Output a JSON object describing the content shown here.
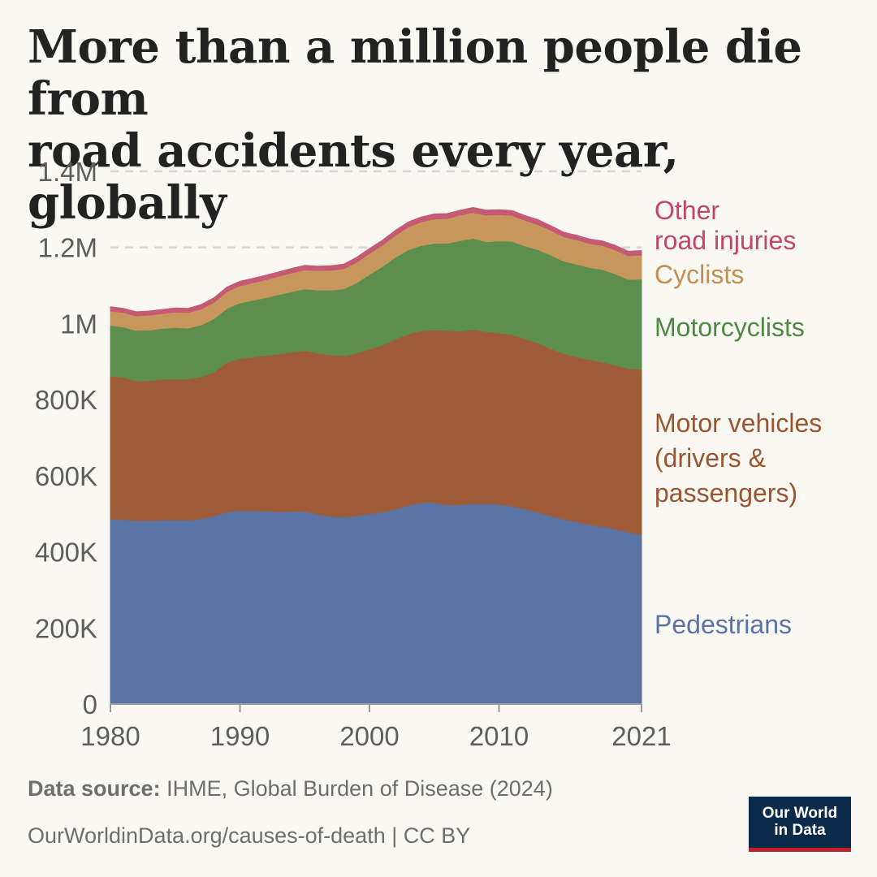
{
  "title_lines": [
    "More than a million people die from",
    "road accidents every year, globally"
  ],
  "footer": {
    "source_label": "Data source:",
    "source_text": "IHME, Global Burden of Disease (2024)",
    "url_text": "OurWorldinData.org/causes-of-death | CC BY"
  },
  "logo": {
    "line1": "Our World",
    "line2": "in Data",
    "bg_color": "#0b2a4a",
    "accent_color": "#c4202f"
  },
  "chart_data": {
    "type": "area",
    "stacked": true,
    "title": "More than a million people die from road accidents every year, globally",
    "xlabel": "",
    "ylabel": "",
    "xlim": [
      1980,
      2021
    ],
    "ylim": [
      0,
      1400000
    ],
    "x_ticks": [
      1980,
      1990,
      2000,
      2010,
      2021
    ],
    "y_ticks": [
      0,
      200000,
      400000,
      600000,
      800000,
      1000000,
      1200000,
      1400000
    ],
    "y_tick_labels": [
      "0",
      "200K",
      "400K",
      "600K",
      "800K",
      "1M",
      "1.2M",
      "1.4M"
    ],
    "grid": "horizontal dashed",
    "legend_placement": "right (inline labels)",
    "x": [
      1980,
      1981,
      1982,
      1983,
      1984,
      1985,
      1986,
      1987,
      1988,
      1989,
      1990,
      1991,
      1992,
      1993,
      1994,
      1995,
      1996,
      1997,
      1998,
      1999,
      2000,
      2001,
      2002,
      2003,
      2004,
      2005,
      2006,
      2007,
      2008,
      2009,
      2010,
      2011,
      2012,
      2013,
      2014,
      2015,
      2016,
      2017,
      2018,
      2019,
      2020,
      2021
    ],
    "series": [
      {
        "name": "Pedestrians",
        "label_lines": [
          "Pedestrians"
        ],
        "color": "#5a74a6",
        "values": [
          487000,
          485000,
          482000,
          482000,
          484000,
          484000,
          483000,
          487000,
          495000,
          505000,
          508000,
          508000,
          507000,
          506000,
          506000,
          507000,
          499000,
          493000,
          492000,
          495000,
          500000,
          505000,
          512000,
          522000,
          530000,
          530000,
          523000,
          524000,
          527000,
          526000,
          525000,
          520000,
          513000,
          504000,
          495000,
          486000,
          479000,
          472000,
          466000,
          460000,
          452000,
          445000
        ]
      },
      {
        "name": "Motor vehicles (drivers & passengers)",
        "label_lines": [
          "Motor vehicles",
          "(drivers &",
          "passengers)"
        ],
        "color": "#a05c37",
        "values": [
          375000,
          374000,
          367000,
          368000,
          370000,
          370000,
          371000,
          373000,
          378000,
          393000,
          400000,
          404000,
          409000,
          414000,
          419000,
          422000,
          423000,
          425000,
          423000,
          427000,
          433000,
          438000,
          447000,
          451000,
          451000,
          453000,
          459000,
          456000,
          457000,
          453000,
          450000,
          451000,
          447000,
          445000,
          439000,
          435000,
          433000,
          433000,
          433000,
          430000,
          430000,
          435000
        ]
      },
      {
        "name": "Motorcyclists",
        "label_lines": [
          "Motorcyclists"
        ],
        "color": "#5c8e4e",
        "values": [
          133000,
          132000,
          133000,
          133000,
          133000,
          136000,
          134000,
          136000,
          140000,
          142000,
          146000,
          149000,
          152000,
          156000,
          159000,
          162000,
          166000,
          170000,
          176000,
          185000,
          196000,
          207000,
          215000,
          221000,
          224000,
          228000,
          229000,
          238000,
          240000,
          236000,
          242000,
          245000,
          244000,
          245000,
          246000,
          243000,
          244000,
          242000,
          243000,
          240000,
          234000,
          237000
        ]
      },
      {
        "name": "Cyclists",
        "label_lines": [
          "Cyclists"
        ],
        "color": "#c8975e",
        "values": [
          38000,
          38000,
          38000,
          39000,
          39000,
          40000,
          41000,
          42000,
          43000,
          44000,
          45000,
          46000,
          47000,
          48000,
          49000,
          50000,
          51000,
          52000,
          53000,
          54000,
          55000,
          56000,
          58000,
          60000,
          62000,
          64000,
          65000,
          67000,
          68000,
          70000,
          69000,
          68000,
          67000,
          66000,
          65000,
          64000,
          64000,
          63000,
          63000,
          63000,
          62000,
          63000
        ]
      },
      {
        "name": "Other road injuries",
        "label_lines": [
          "Other",
          "road injuries"
        ],
        "color": "#c55a74",
        "values": [
          11000,
          11000,
          11000,
          11000,
          11000,
          11000,
          11000,
          12000,
          12000,
          12000,
          12000,
          12000,
          12000,
          12000,
          12000,
          12000,
          12000,
          12000,
          12000,
          13000,
          13000,
          13000,
          13000,
          13000,
          13000,
          13000,
          13000,
          13000,
          13000,
          13000,
          13000,
          13000,
          13000,
          13000,
          12000,
          12000,
          12000,
          12000,
          12000,
          12000,
          12000,
          12000
        ]
      }
    ],
    "label_colors": {
      "Pedestrians": "#5a74a6",
      "Motor vehicles (drivers & passengers)": "#9a5531",
      "Motorcyclists": "#4f8a43",
      "Cyclists": "#c38f53",
      "Other road injuries": "#c2466a"
    }
  }
}
